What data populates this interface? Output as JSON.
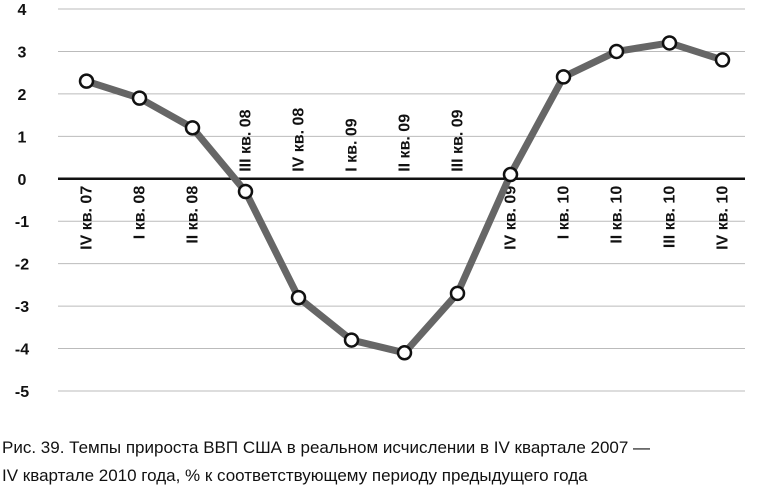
{
  "chart_data": {
    "type": "line",
    "caption": [
      "Рис. 39. Темпы прироста ВВП США в реальном исчислении в IV квартале 2007 —",
      "IV квартале 2010 года, % к соответствующему периоду предыдущего года"
    ],
    "categories": [
      "IV кв. 07",
      "I кв. 08",
      "II кв. 08",
      "III кв. 08",
      "IV кв. 08",
      "I кв. 09",
      "II кв. 09",
      "III кв. 09",
      "IV кв. 09",
      "I кв. 10",
      "II кв. 10",
      "III кв. 10",
      "IV кв. 10"
    ],
    "values": [
      2.3,
      1.9,
      1.2,
      -0.3,
      -2.8,
      -3.8,
      -4.1,
      -2.7,
      0.1,
      2.4,
      3.0,
      3.2,
      2.8
    ],
    "color": "#666666",
    "ylim": [
      -5,
      4
    ],
    "yticks": [
      -5,
      -4,
      -3,
      -2,
      -1,
      0,
      1,
      2,
      3,
      4
    ],
    "grid": true
  }
}
